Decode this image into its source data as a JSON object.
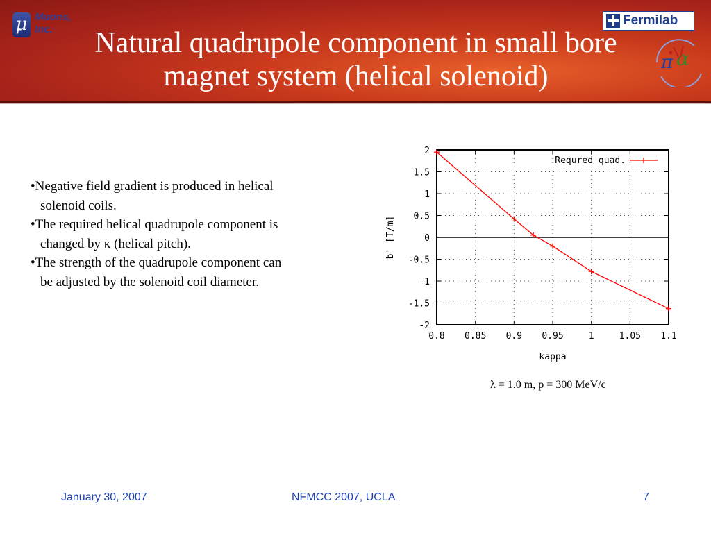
{
  "header": {
    "title": "Natural quadrupole component in small bore magnet system (helical solenoid)",
    "logo_left": "Muons, Inc.",
    "logo_left_symbol": "μ",
    "logo_right": "Fermilab",
    "logo_nf_icon": "neutrino-factory-muon-collider-logo"
  },
  "bullets": [
    {
      "first": "•Negative field gradient is produced in helical",
      "cont": "solenoid coils."
    },
    {
      "first": "•The required helical quadrupole component is",
      "cont": "changed by κ (helical pitch)."
    },
    {
      "first": "•The strength of the quadrupole component can",
      "cont": "be adjusted by the solenoid coil diameter."
    }
  ],
  "caption": "λ = 1.0 m, p = 300 MeV/c",
  "chart_data": {
    "type": "line",
    "xlabel": "kappa",
    "ylabel": "b' [T/m]",
    "xlim": [
      0.8,
      1.1
    ],
    "ylim": [
      -2,
      2
    ],
    "xticks": [
      "0.8",
      "0.85",
      "0.9",
      "0.95",
      "1",
      "1.05",
      "1.1"
    ],
    "yticks": [
      "2",
      "1.5",
      "1",
      "0.5",
      "0",
      "-0.5",
      "-1",
      "-1.5",
      "-2"
    ],
    "grid": true,
    "legend_position": "top-right",
    "zero_line": true,
    "series": [
      {
        "name": "Requred quad.",
        "color": "#ff0000",
        "x": [
          0.8,
          0.9,
          0.925,
          0.95,
          1.0,
          1.1
        ],
        "y": [
          1.95,
          0.42,
          0.05,
          -0.2,
          -0.78,
          -1.63
        ]
      }
    ]
  },
  "footer": {
    "date": "January 30, 2007",
    "conference": "NFMCC 2007, UCLA",
    "page": "7"
  }
}
